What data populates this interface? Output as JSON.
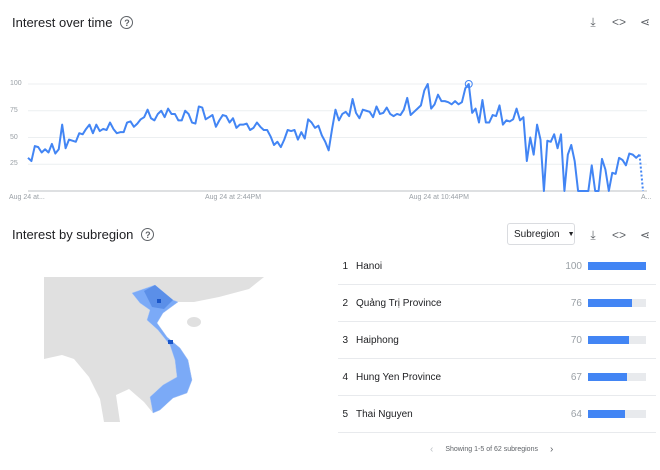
{
  "time": {
    "title": "Interest over time",
    "help": "?",
    "icons": [
      "download-icon",
      "embed-icon",
      "share-icon"
    ]
  },
  "chart_data": {
    "type": "line",
    "title": "",
    "ylim": [
      0,
      100
    ],
    "yticks": [
      "100",
      "75",
      "50",
      "25"
    ],
    "xticks": [
      "Aug 24 at...",
      "Aug 24 at 2:44PM",
      "Aug 24 at 10:44PM",
      "A..."
    ],
    "color": "#4285f4",
    "grid": true,
    "partial_last_point": 0,
    "values": [
      31,
      28,
      42,
      41,
      36,
      39,
      36,
      44,
      35,
      39,
      62,
      40,
      48,
      47,
      46,
      54,
      53,
      58,
      62,
      54,
      62,
      56,
      58,
      57,
      64,
      58,
      54,
      55,
      55,
      64,
      65,
      60,
      63,
      67,
      69,
      76,
      68,
      66,
      72,
      75,
      69,
      77,
      72,
      72,
      66,
      66,
      75,
      72,
      64,
      63,
      79,
      78,
      67,
      69,
      71,
      60,
      66,
      71,
      70,
      64,
      68,
      59,
      62,
      62,
      63,
      57,
      59,
      64,
      60,
      57,
      57,
      51,
      43,
      46,
      41,
      48,
      57,
      56,
      57,
      48,
      55,
      49,
      67,
      64,
      59,
      61,
      52,
      46,
      38,
      58,
      76,
      66,
      72,
      74,
      70,
      86,
      73,
      68,
      76,
      75,
      74,
      69,
      79,
      72,
      73,
      78,
      72,
      70,
      72,
      71,
      76,
      87,
      71,
      74,
      77,
      80,
      94,
      100,
      77,
      81,
      90,
      84,
      84,
      83,
      81,
      84,
      81,
      83,
      96,
      100,
      73,
      77,
      64,
      85,
      64,
      64,
      71,
      70,
      80,
      62,
      66,
      65,
      67,
      77,
      66,
      69,
      28,
      50,
      34,
      62,
      48,
      0,
      47,
      46,
      53,
      40,
      53,
      0,
      34,
      43,
      28,
      0,
      0,
      0,
      0,
      24,
      0,
      0,
      30,
      20,
      0,
      17,
      16,
      31,
      29,
      24,
      35,
      34,
      31,
      34
    ]
  },
  "subregion": {
    "title": "Interest by subregion",
    "help": "?",
    "select": "Subregion",
    "icons": [
      "download-icon",
      "embed-icon",
      "share-icon"
    ],
    "map_colors": {
      "land": "#e0e0e0",
      "region": "#7baaf7",
      "high": "#1a56c9"
    },
    "rows": [
      {
        "rank": "1",
        "name": "Hanoi",
        "value": "100"
      },
      {
        "rank": "2",
        "name": "Quảng Trị Province",
        "value": "76"
      },
      {
        "rank": "3",
        "name": "Haiphong",
        "value": "70"
      },
      {
        "rank": "4",
        "name": "Hung Yen Province",
        "value": "67"
      },
      {
        "rank": "5",
        "name": "Thai Nguyen",
        "value": "64"
      }
    ],
    "pager": "Showing 1-5 of 62 subregions"
  }
}
